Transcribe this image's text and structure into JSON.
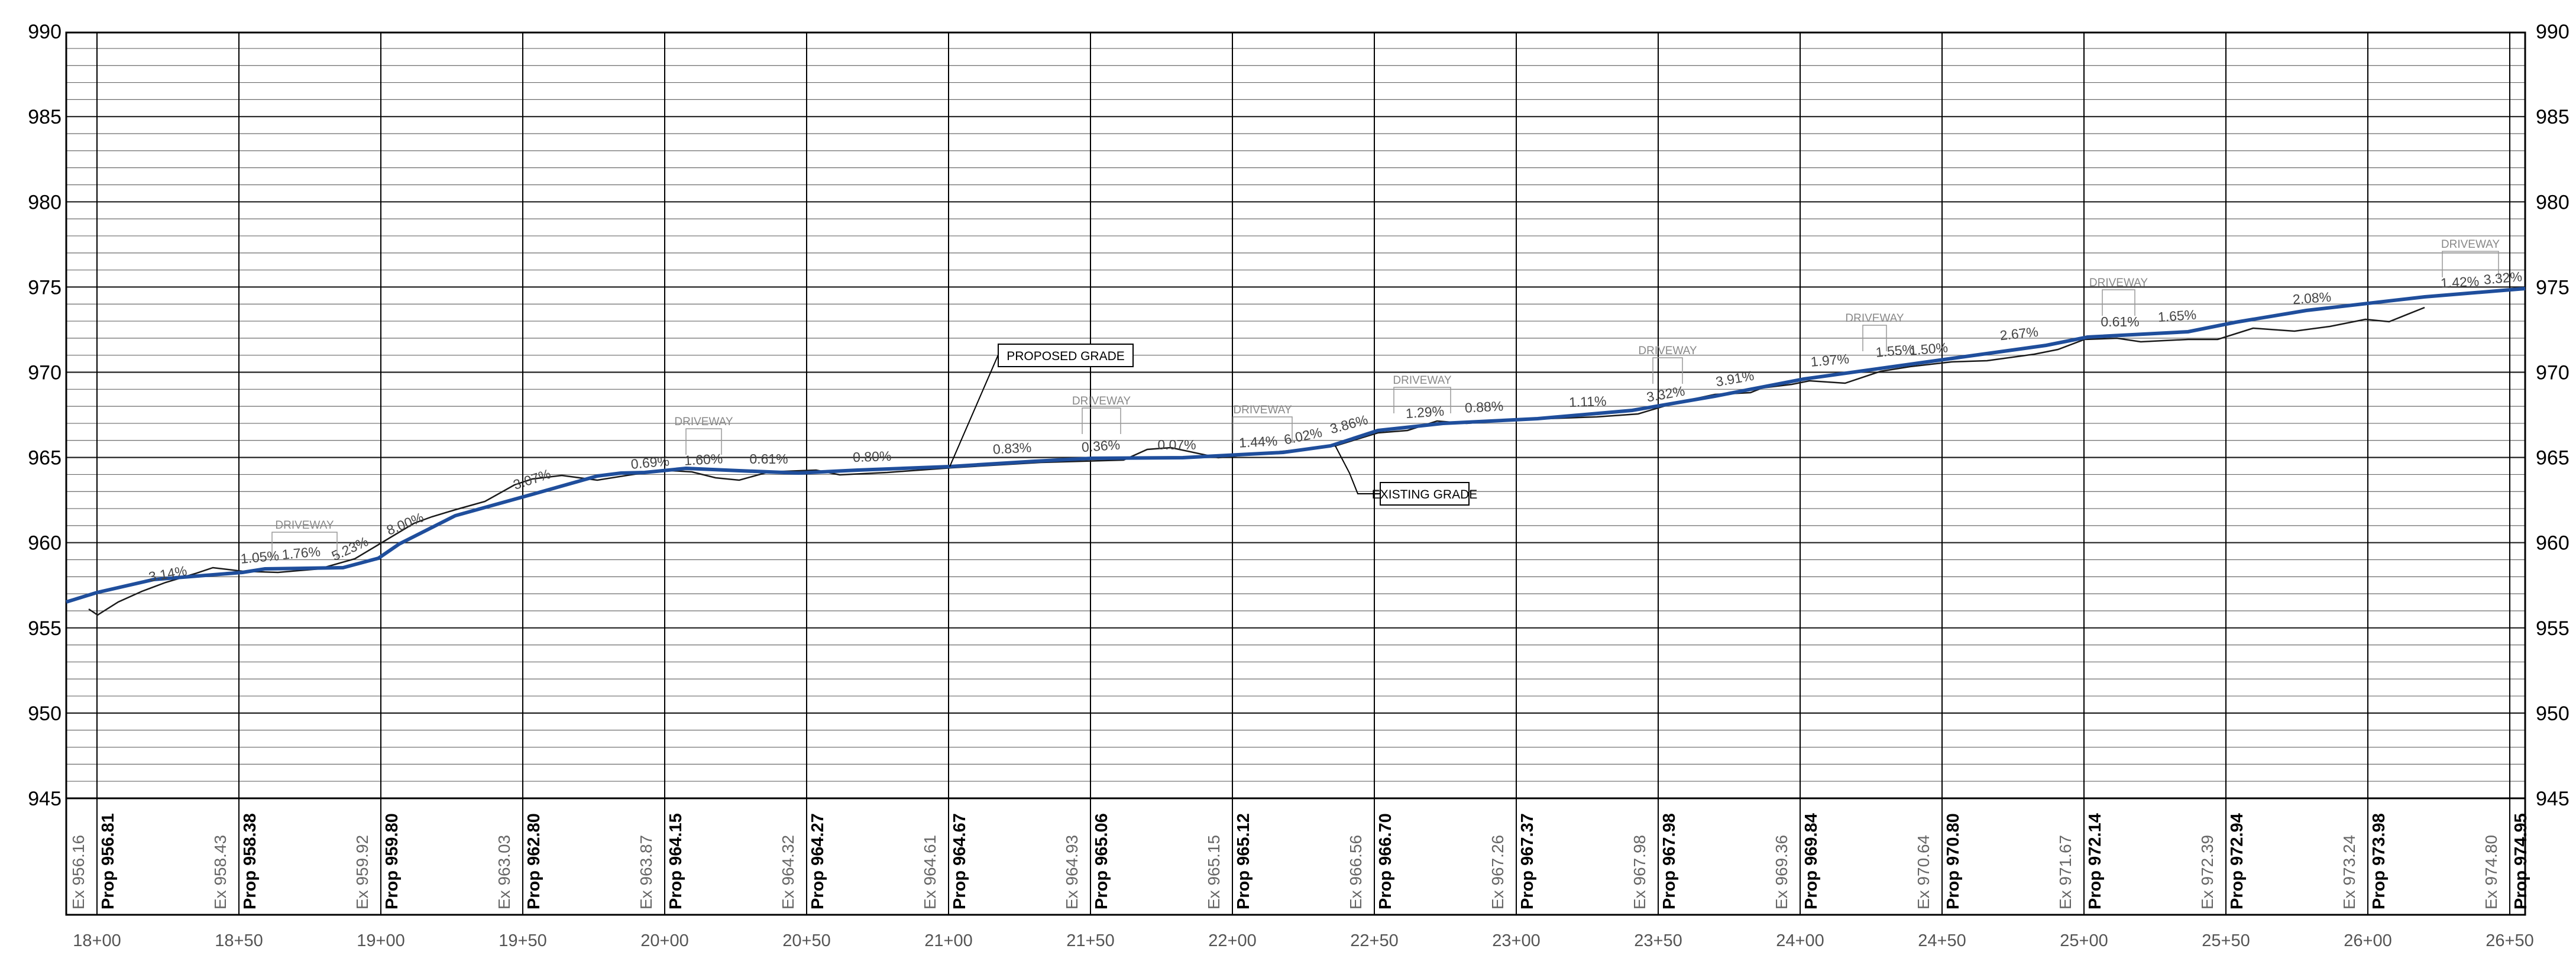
{
  "elevation_axis": {
    "left_labels": [
      "990",
      "985",
      "980",
      "975",
      "970",
      "965",
      "960",
      "955",
      "950",
      "945"
    ],
    "right_labels": [
      "990",
      "985",
      "980",
      "975",
      "970",
      "965",
      "960",
      "955",
      "950",
      "945"
    ]
  },
  "stations": {
    "labels": [
      "18+00",
      "18+50",
      "19+00",
      "19+50",
      "20+00",
      "20+50",
      "21+00",
      "21+50",
      "22+00",
      "22+50",
      "23+00",
      "23+50",
      "24+00",
      "24+50",
      "25+00",
      "25+50",
      "26+00",
      "26+50"
    ]
  },
  "elevations": [
    {
      "ex": "Ex  956.16",
      "prop": "Prop  956.81"
    },
    {
      "ex": "Ex  958.43",
      "prop": "Prop  958.38"
    },
    {
      "ex": "Ex  959.92",
      "prop": "Prop  959.80"
    },
    {
      "ex": "Ex  963.03",
      "prop": "Prop  962.80"
    },
    {
      "ex": "Ex  963.87",
      "prop": "Prop  964.15"
    },
    {
      "ex": "Ex  964.32",
      "prop": "Prop  964.27"
    },
    {
      "ex": "Ex  964.61",
      "prop": "Prop  964.67"
    },
    {
      "ex": "Ex  964.93",
      "prop": "Prop  965.06"
    },
    {
      "ex": "Ex  965.15",
      "prop": "Prop  965.12"
    },
    {
      "ex": "Ex  966.56",
      "prop": "Prop  966.70"
    },
    {
      "ex": "Ex  967.26",
      "prop": "Prop  967.37"
    },
    {
      "ex": "Ex  967.98",
      "prop": "Prop  967.98"
    },
    {
      "ex": "Ex  969.36",
      "prop": "Prop  969.84"
    },
    {
      "ex": "Ex  970.64",
      "prop": "Prop  970.80"
    },
    {
      "ex": "Ex  971.67",
      "prop": "Prop  972.14"
    },
    {
      "ex": "Ex  972.39",
      "prop": "Prop  972.94"
    },
    {
      "ex": "Ex  973.24",
      "prop": "Prop  973.98"
    },
    {
      "ex": "Ex  974.80",
      "prop": "Prop  974.95"
    }
  ],
  "grade_labels": [
    "3.14%",
    "1.05%",
    "1.76%",
    "5.23%",
    "8.00%",
    "3.07%",
    "0.69%",
    "1.60%",
    "0.61%",
    "0.80%",
    "0.83%",
    "0.36%",
    "0.07%",
    "1.44%",
    "6.02%",
    "3.86%",
    "1.29%",
    "0.88%",
    "1.11%",
    "3.32%",
    "3.91%",
    "1.97%",
    "1.55%",
    "1.50%",
    "2.67%",
    "0.61%",
    "1.65%",
    "2.08%",
    "1.42%",
    "3.32%"
  ],
  "driveway_label": "DRIVEWAY",
  "callouts": {
    "proposed": "PROPOSED GRADE",
    "existing": "EXISTING GRADE"
  },
  "colors": {
    "proposed_grade": "#1f4e9c",
    "existing_grade": "#1a1a1a",
    "grid": "#000000"
  }
}
